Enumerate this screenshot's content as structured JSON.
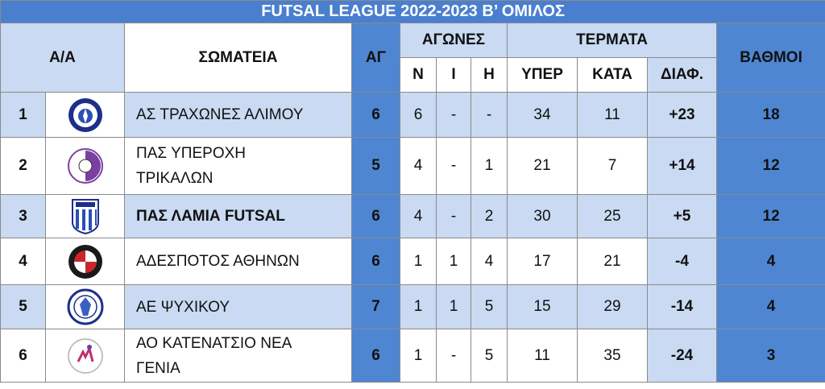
{
  "title": "FUTSAL LEAGUE 2022-2023 Β’ ΟΜΙΛΟΣ",
  "headers": {
    "pos": "Α/Α",
    "team": "ΣΩΜΑΤΕΙΑ",
    "played": "ΑΓ",
    "games": "ΑΓΩΝΕΣ",
    "wins": "Ν",
    "draws": "Ι",
    "losses": "Η",
    "goals": "ΤΕΡΜΑΤΑ",
    "goals_for": "ΥΠΕΡ",
    "goals_against": "ΚΑΤΑ",
    "goal_diff": "ΔΙΑΦ.",
    "points": "ΒΑΘΜΟΙ"
  },
  "rows": [
    {
      "pos": "1",
      "team": "ΑΣ ΤΡΑΧΩΝΕΣ ΑΛΙΜΟΥ",
      "team2": "",
      "logo": "trachones-logo",
      "ag": "6",
      "w": "6",
      "d": "-",
      "l": "-",
      "gf": "34",
      "ga": "11",
      "diff": "+23",
      "pts": "18"
    },
    {
      "pos": "2",
      "team": "ΠΑΣ ΥΠΕΡΟΧΗ",
      "team2": "ΤΡΙΚΑΛΩΝ",
      "logo": "yperochi-logo",
      "ag": "5",
      "w": "4",
      "d": "-",
      "l": "1",
      "gf": "21",
      "ga": "7",
      "diff": "+14",
      "pts": "12"
    },
    {
      "pos": "3",
      "team": "ΠΑΣ ΛΑΜΙΑ FUTSAL",
      "team2": "",
      "logo": "lamia-logo",
      "ag": "6",
      "w": "4",
      "d": "-",
      "l": "2",
      "gf": "30",
      "ga": "25",
      "diff": "+5",
      "pts": "12"
    },
    {
      "pos": "4",
      "team": "ΑΔΕΣΠΟΤΟΣ ΑΘΗΝΩΝ",
      "team2": "",
      "logo": "adespotos-logo",
      "ag": "6",
      "w": "1",
      "d": "1",
      "l": "4",
      "gf": "17",
      "ga": "21",
      "diff": "-4",
      "pts": "4"
    },
    {
      "pos": "5",
      "team": "ΑΕ ΨΥΧΙΚΟΥ",
      "team2": "",
      "logo": "psychiko-logo",
      "ag": "7",
      "w": "1",
      "d": "1",
      "l": "5",
      "gf": "15",
      "ga": "29",
      "diff": "-14",
      "pts": "4"
    },
    {
      "pos": "6",
      "team": "ΑΟ ΚΑΤΕΝΑΤΣΙΟ ΝΕΑ",
      "team2": "ΓΕΝΙΑ",
      "logo": "katenatsio-logo",
      "ag": "6",
      "w": "1",
      "d": "-",
      "l": "5",
      "gf": "11",
      "ga": "35",
      "diff": "-24",
      "pts": "3"
    }
  ]
}
